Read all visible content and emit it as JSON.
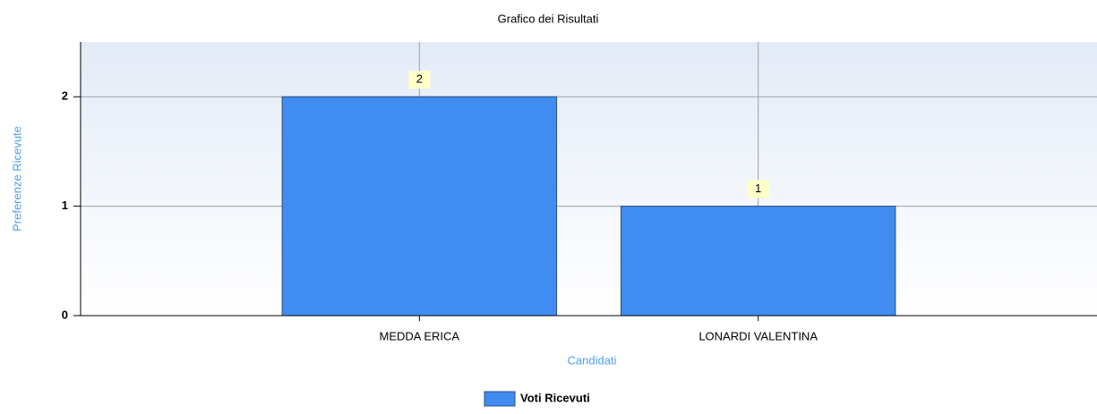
{
  "chart_data": {
    "type": "bar",
    "title": "Grafico dei Risultati",
    "x_label": "Candidati",
    "y_label": "Preferenze Ricevute",
    "categories": [
      "MEDDA ERICA",
      "LONARDI VALENTINA"
    ],
    "series": [
      {
        "name": "Voti Ricevuti",
        "color": "#418cf0",
        "values": [
          2,
          1
        ]
      }
    ],
    "ylim": [
      0,
      2.5
    ],
    "yticks": [
      0,
      1,
      2
    ],
    "grid": true,
    "legend": "bottom"
  }
}
